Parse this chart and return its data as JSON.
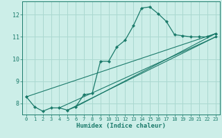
{
  "title": "",
  "xlabel": "Humidex (Indice chaleur)",
  "ylabel": "",
  "xlim": [
    -0.5,
    23.5
  ],
  "ylim": [
    7.5,
    12.6
  ],
  "yticks": [
    8,
    9,
    10,
    11,
    12
  ],
  "xticks": [
    0,
    1,
    2,
    3,
    4,
    5,
    6,
    7,
    8,
    9,
    10,
    11,
    12,
    13,
    14,
    15,
    16,
    17,
    18,
    19,
    20,
    21,
    22,
    23
  ],
  "bg_color": "#cceee8",
  "grid_color": "#aad8d0",
  "line_color": "#1a7a6a",
  "marker_color": "#1a7a6a",
  "series": [
    [
      0,
      8.3
    ],
    [
      1,
      7.85
    ],
    [
      2,
      7.65
    ],
    [
      3,
      7.8
    ],
    [
      4,
      7.8
    ],
    [
      5,
      7.7
    ],
    [
      6,
      7.85
    ],
    [
      7,
      8.4
    ],
    [
      8,
      8.45
    ],
    [
      9,
      9.9
    ],
    [
      10,
      9.9
    ],
    [
      11,
      10.55
    ],
    [
      12,
      10.85
    ],
    [
      13,
      11.5
    ],
    [
      14,
      12.3
    ],
    [
      15,
      12.35
    ],
    [
      16,
      12.05
    ],
    [
      17,
      11.7
    ],
    [
      18,
      11.1
    ],
    [
      19,
      11.05
    ],
    [
      20,
      11.0
    ],
    [
      21,
      11.0
    ],
    [
      22,
      11.0
    ],
    [
      23,
      11.15
    ]
  ],
  "trend_lines": [
    [
      [
        0,
        8.3
      ],
      [
        23,
        11.15
      ]
    ],
    [
      [
        4,
        7.8
      ],
      [
        23,
        11.0
      ]
    ],
    [
      [
        5,
        7.7
      ],
      [
        23,
        11.0
      ]
    ],
    [
      [
        6,
        7.85
      ],
      [
        23,
        11.15
      ]
    ]
  ]
}
